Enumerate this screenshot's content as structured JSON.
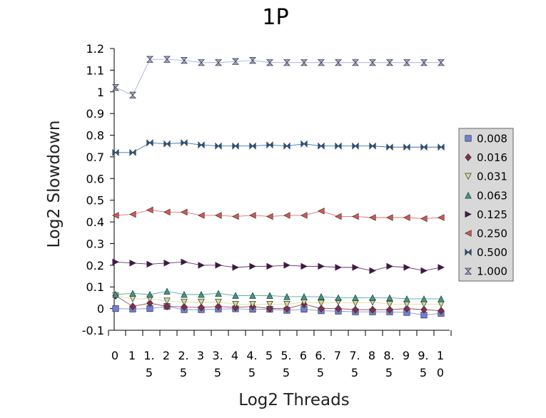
{
  "chart_data": {
    "type": "line",
    "title": "1P",
    "xlabel": "Log2 Threads",
    "ylabel": "Log2 Slowdown",
    "x": [
      0,
      1,
      1.5,
      2,
      2.5,
      3,
      3.5,
      4,
      4.5,
      5,
      5.5,
      6,
      6.5,
      7,
      7.5,
      8,
      8.5,
      9,
      9.5,
      10
    ],
    "x_tick_labels": [
      [
        "0"
      ],
      [
        "1"
      ],
      [
        "1.",
        "5"
      ],
      [
        "2"
      ],
      [
        "2.",
        "5"
      ],
      [
        "3"
      ],
      [
        "3.",
        "5"
      ],
      [
        "4"
      ],
      [
        "4.",
        "5"
      ],
      [
        "5"
      ],
      [
        "5.",
        "5"
      ],
      [
        "6"
      ],
      [
        "6.",
        "5"
      ],
      [
        "7"
      ],
      [
        "7.",
        "5"
      ],
      [
        "8"
      ],
      [
        "8.",
        "5"
      ],
      [
        "9"
      ],
      [
        "9.",
        "5"
      ],
      [
        "1",
        "0"
      ]
    ],
    "ylim": [
      -0.1,
      1.2
    ],
    "y_ticks": [
      -0.1,
      0,
      0.1,
      0.2,
      0.3,
      0.4,
      0.5,
      0.6,
      0.7,
      0.8,
      0.9,
      1,
      1.1,
      1.2
    ],
    "y_tick_labels": [
      "-0.1",
      "0",
      "0.1",
      "0.2",
      "0.3",
      "0.4",
      "0.5",
      "0.6",
      "0.7",
      "0.8",
      "0.9",
      "1",
      "1.1",
      "1.2"
    ],
    "grid": false,
    "legend_position": "right",
    "series": [
      {
        "name": "0.008",
        "color": "#6f7fd8",
        "marker": "square",
        "values": [
          0.0,
          -0.002,
          0.0,
          0.01,
          -0.005,
          -0.005,
          -0.002,
          -0.001,
          -0.003,
          -0.003,
          -0.008,
          -0.003,
          -0.01,
          -0.012,
          -0.015,
          -0.015,
          -0.015,
          -0.018,
          -0.03,
          -0.022
        ]
      },
      {
        "name": "0.016",
        "color": "#8a2a4a",
        "marker": "diamond",
        "values": [
          0.06,
          0.01,
          0.025,
          0.01,
          0.008,
          0.005,
          0.01,
          0.005,
          0.01,
          0.0,
          0.0,
          0.02,
          0.0,
          0.0,
          -0.005,
          -0.005,
          -0.005,
          0.0,
          -0.005,
          -0.01
        ]
      },
      {
        "name": "0.031",
        "color": "#d6d890",
        "marker": "triangle-down",
        "values": [
          0.06,
          0.045,
          0.045,
          0.035,
          0.03,
          0.03,
          0.03,
          0.02,
          0.02,
          0.02,
          0.02,
          0.03,
          0.025,
          0.03,
          0.025,
          0.03,
          0.02,
          0.02,
          0.02,
          0.02
        ]
      },
      {
        "name": "0.063",
        "color": "#3a9a8a",
        "marker": "triangle-up",
        "values": [
          0.065,
          0.07,
          0.065,
          0.08,
          0.065,
          0.065,
          0.07,
          0.06,
          0.06,
          0.06,
          0.055,
          0.055,
          0.055,
          0.05,
          0.05,
          0.05,
          0.05,
          0.045,
          0.045,
          0.045
        ]
      },
      {
        "name": "0.125",
        "color": "#4a1050",
        "marker": "triangle-right",
        "values": [
          0.215,
          0.21,
          0.205,
          0.21,
          0.215,
          0.2,
          0.2,
          0.19,
          0.195,
          0.195,
          0.2,
          0.195,
          0.195,
          0.19,
          0.19,
          0.175,
          0.195,
          0.19,
          0.175,
          0.19
        ]
      },
      {
        "name": "0.250",
        "color": "#d85850",
        "marker": "triangle-left",
        "values": [
          0.43,
          0.435,
          0.455,
          0.445,
          0.445,
          0.43,
          0.43,
          0.425,
          0.43,
          0.425,
          0.43,
          0.43,
          0.45,
          0.425,
          0.425,
          0.42,
          0.42,
          0.42,
          0.415,
          0.42
        ]
      },
      {
        "name": "0.500",
        "color": "#1a5a9a",
        "marker": "bowtie",
        "values": [
          0.72,
          0.72,
          0.765,
          0.76,
          0.765,
          0.755,
          0.75,
          0.75,
          0.75,
          0.755,
          0.75,
          0.76,
          0.75,
          0.75,
          0.75,
          0.75,
          0.745,
          0.745,
          0.745,
          0.745
        ]
      },
      {
        "name": "1.000",
        "color": "#9aa0d8",
        "marker": "hourglass",
        "values": [
          1.02,
          0.985,
          1.15,
          1.15,
          1.145,
          1.135,
          1.135,
          1.14,
          1.145,
          1.135,
          1.135,
          1.135,
          1.135,
          1.135,
          1.135,
          1.135,
          1.135,
          1.135,
          1.135,
          1.135
        ]
      }
    ]
  }
}
